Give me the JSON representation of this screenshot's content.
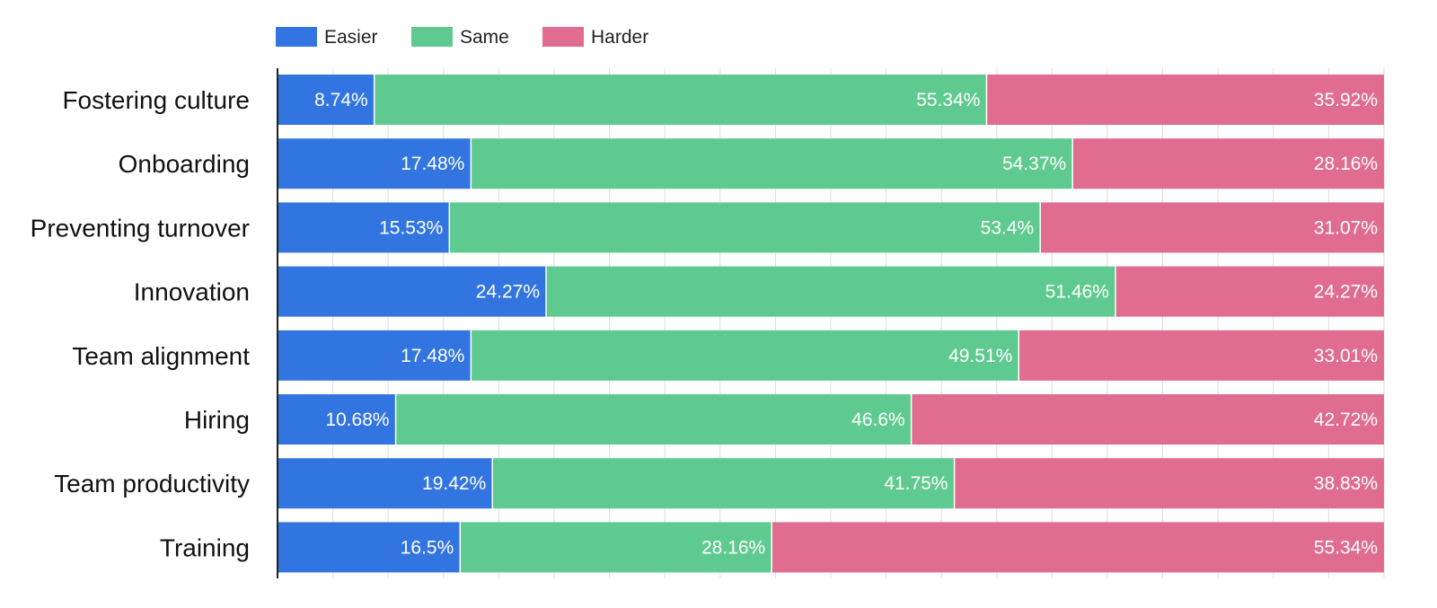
{
  "chart_data": {
    "type": "bar",
    "orientation": "horizontal",
    "stacked": true,
    "categories": [
      "Fostering culture",
      "Onboarding",
      "Preventing turnover",
      "Innovation",
      "Team alignment",
      "Hiring",
      "Team productivity",
      "Training"
    ],
    "series": [
      {
        "name": "Easier",
        "color": "#3375e0",
        "values": [
          8.74,
          17.48,
          15.53,
          24.27,
          17.48,
          10.68,
          19.42,
          16.5
        ],
        "labels": [
          "8.74%",
          "17.48%",
          "15.53%",
          "24.27%",
          "17.48%",
          "10.68%",
          "19.42%",
          "16.5%"
        ]
      },
      {
        "name": "Same",
        "color": "#5fca8f",
        "values": [
          55.34,
          54.37,
          53.4,
          51.46,
          49.51,
          46.6,
          41.75,
          28.16
        ],
        "labels": [
          "55.34%",
          "54.37%",
          "53.4%",
          "51.46%",
          "49.51%",
          "46.6%",
          "41.75%",
          "28.16%"
        ]
      },
      {
        "name": "Harder",
        "color": "#e06c8f",
        "values": [
          35.92,
          28.16,
          31.07,
          24.27,
          33.01,
          42.72,
          38.83,
          55.34
        ],
        "labels": [
          "35.92%",
          "28.16%",
          "31.07%",
          "24.27%",
          "33.01%",
          "42.72%",
          "38.83%",
          "55.34%"
        ]
      }
    ],
    "xlim": [
      0,
      100
    ],
    "grid": true,
    "legend_position": "top-left",
    "title": "",
    "xlabel": "",
    "ylabel": ""
  }
}
